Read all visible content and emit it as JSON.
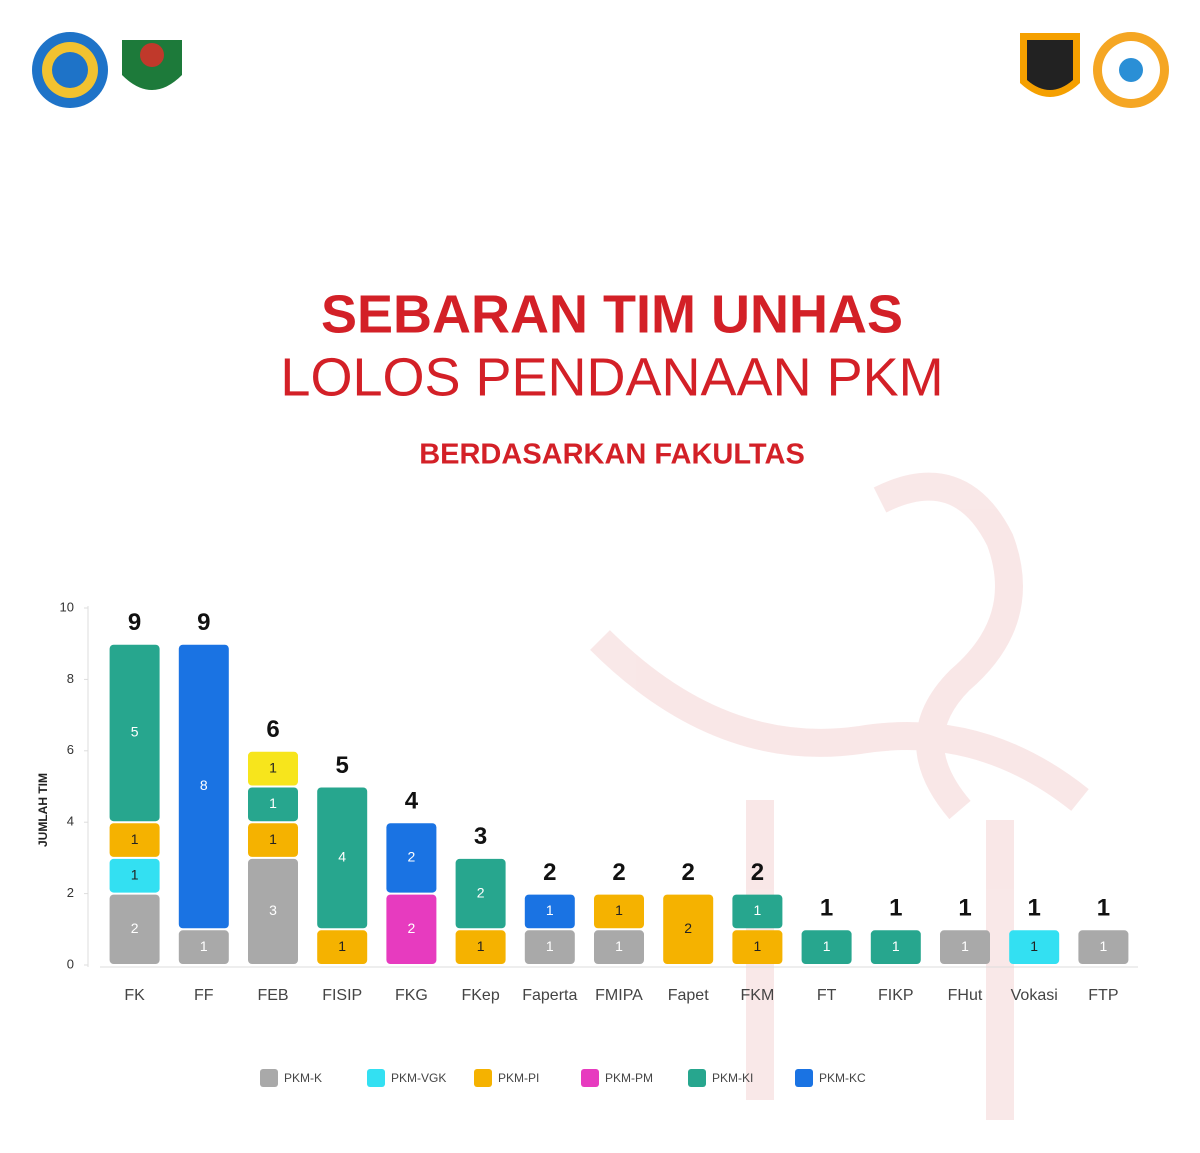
{
  "chart_data": {
    "type": "stacked-bar",
    "title": "SEBARAN TIM UNHAS",
    "title_line2": "LOLOS PENDANAAN PKM",
    "subtitle": "BERDASARKAN FAKULTAS",
    "y_label": "JUMLAH TIM",
    "categories": [
      "FK",
      "FF",
      "FEB",
      "FISIP",
      "FKG",
      "FKep",
      "Faperta",
      "FMIPA",
      "Fapet",
      "FKM",
      "FT",
      "FIKP",
      "FHut",
      "Vokasi",
      "FTP"
    ],
    "series": [
      {
        "name": "PKM-K",
        "color": "#a9a9a9",
        "values": [
          2,
          1,
          3,
          null,
          null,
          null,
          1,
          1,
          null,
          null,
          null,
          null,
          1,
          null,
          1
        ]
      },
      {
        "name": "PKM-VGK",
        "color": "#33e0f2",
        "values": [
          1,
          null,
          null,
          null,
          null,
          null,
          null,
          null,
          null,
          null,
          null,
          null,
          null,
          1,
          null
        ]
      },
      {
        "name": "PKM-PI",
        "color": "#f5b200",
        "values": [
          1,
          null,
          1,
          1,
          null,
          1,
          null,
          1,
          2,
          1,
          null,
          null,
          null,
          null,
          null
        ]
      },
      {
        "name": "PKM-PM",
        "color": "#e73bbf",
        "values": [
          null,
          null,
          null,
          null,
          2,
          null,
          null,
          null,
          null,
          null,
          null,
          null,
          null,
          null,
          null
        ]
      },
      {
        "name": "PKM-KI",
        "color": "#27a68e",
        "values": [
          5,
          null,
          1,
          4,
          null,
          2,
          null,
          null,
          null,
          1,
          1,
          1,
          null,
          null,
          null
        ]
      },
      {
        "name": "PKM-KC",
        "color": "#1a73e3",
        "values": [
          null,
          8,
          null,
          null,
          2,
          null,
          1,
          null,
          null,
          null,
          null,
          null,
          null,
          null,
          null
        ]
      },
      {
        "color": "#f7e51c",
        "values": [
          null,
          null,
          1,
          null,
          null,
          null,
          null,
          null,
          null,
          null,
          null,
          null,
          null,
          null,
          null
        ]
      }
    ],
    "totals": [
      9,
      9,
      6,
      5,
      4,
      3,
      2,
      2,
      2,
      2,
      1,
      1,
      1,
      1,
      1
    ],
    "ylim": [
      0,
      10
    ],
    "yticks": [
      0,
      2,
      4,
      6,
      8,
      10
    ]
  }
}
